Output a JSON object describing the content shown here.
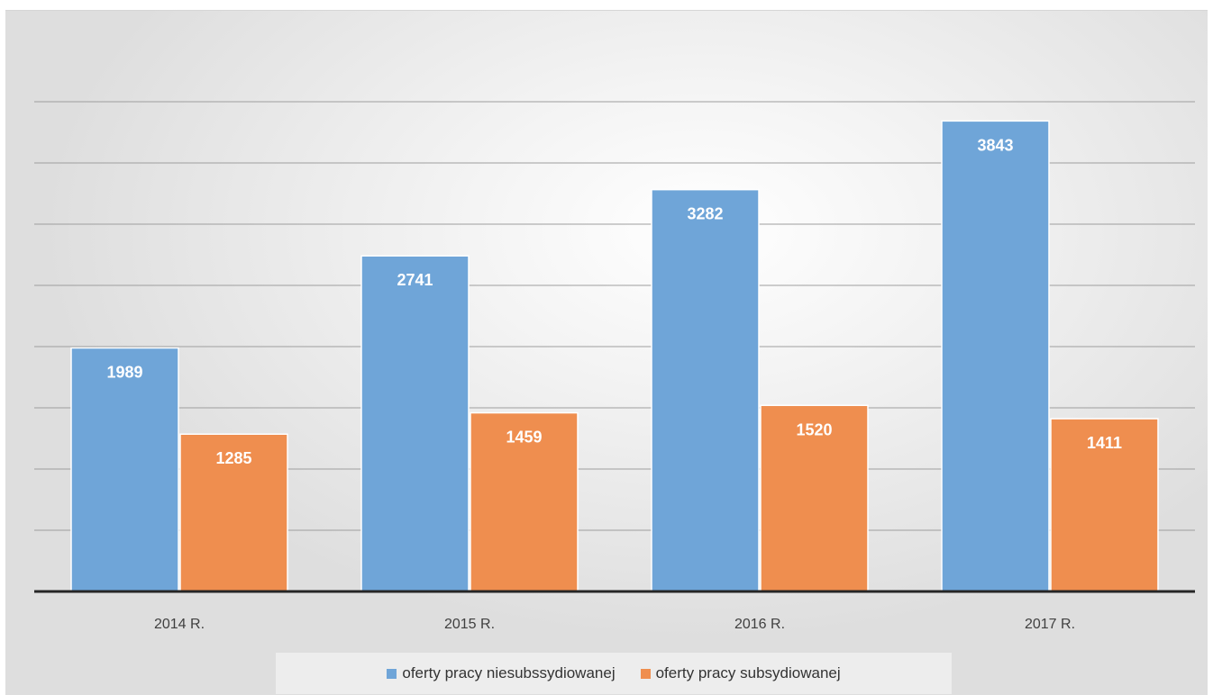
{
  "colors": {
    "series1": "#6fa5d8",
    "series2": "#ef8e4f",
    "gridline": "#9e9e9e",
    "axis": "#262626"
  },
  "chart_data": {
    "type": "bar",
    "categories": [
      "2014 R.",
      "2015 R.",
      "2016 R.",
      "2017 R."
    ],
    "series": [
      {
        "name": "oferty pracy niesubssydiowanej",
        "values": [
          1989,
          2741,
          3282,
          3843
        ]
      },
      {
        "name": "oferty pracy subsydiowanej",
        "values": [
          1285,
          1459,
          1520,
          1411
        ]
      }
    ],
    "ylim": [
      0,
      4500
    ],
    "y_gridlines": [
      500,
      1000,
      1500,
      2000,
      2500,
      3000,
      3500,
      4000
    ],
    "y_tick_labels_shown": false,
    "grid": true,
    "data_labels": true,
    "legend_position": "bottom"
  }
}
